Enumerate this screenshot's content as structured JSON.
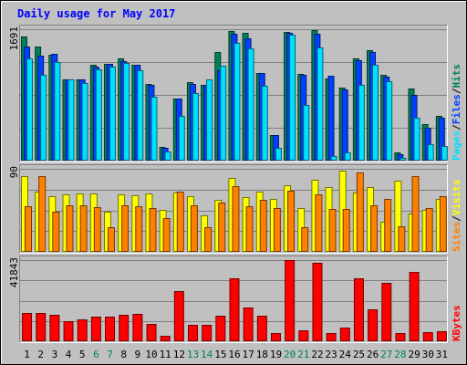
{
  "chart_data": {
    "type": "bar",
    "title": "Daily usage for May 2017",
    "categories": [
      "1",
      "2",
      "3",
      "4",
      "5",
      "6",
      "7",
      "8",
      "9",
      "10",
      "11",
      "12",
      "13",
      "14",
      "15",
      "16",
      "17",
      "18",
      "19",
      "20",
      "21",
      "22",
      "23",
      "24",
      "25",
      "26",
      "27",
      "28",
      "29",
      "30",
      "31"
    ],
    "weekend_days": [
      6,
      7,
      13,
      14,
      20,
      21,
      27,
      28
    ],
    "panels": [
      {
        "id": "hits-files-pages",
        "ymax_label": "1691",
        "ymax": 1691,
        "right_labels": [
          {
            "text": "Pages",
            "color": "#00e0ff"
          },
          {
            "text": "/",
            "color": "#000000"
          },
          {
            "text": "Files",
            "color": "#0040ff"
          },
          {
            "text": "/",
            "color": "#000000"
          },
          {
            "text": "Hits",
            "color": "#00805c"
          }
        ],
        "series": [
          {
            "name": "Hits",
            "color": "#00805c",
            "values": [
              1600,
              1470,
              1360,
              1040,
              1050,
              1230,
              1250,
              1320,
              1230,
              990,
              180,
              800,
              1010,
              980,
              1400,
              1670,
              1640,
              1130,
              330,
              1650,
              1110,
              1680,
              1060,
              940,
              1310,
              1420,
              1100,
              100,
              930,
              470,
              570
            ]
          },
          {
            "name": "Files",
            "color": "#0040ff",
            "values": [
              1470,
              1350,
              1370,
              1040,
              1040,
              1210,
              1240,
              1280,
              1230,
              980,
              170,
              800,
              990,
              970,
              1160,
              1630,
              1570,
              1130,
              330,
              1640,
              1100,
              1630,
              1090,
              920,
              1290,
              1400,
              1080,
              80,
              840,
              420,
              550
            ]
          },
          {
            "name": "Pages",
            "color": "#00e0ff",
            "values": [
              1320,
              1100,
              1270,
              1040,
              1000,
              1170,
              1210,
              1260,
              1160,
              820,
              120,
              580,
              870,
              1040,
              1220,
              1520,
              1450,
              960,
              170,
              1620,
              720,
              1460,
              60,
              110,
              970,
              1230,
              1020,
              40,
              550,
              210,
              190
            ]
          }
        ]
      },
      {
        "id": "visits-sites",
        "ymax_label": "90",
        "ymax": 90,
        "right_labels": [
          {
            "text": "Sites",
            "color": "#ff8000"
          },
          {
            "text": "/",
            "color": "#000000"
          },
          {
            "text": "Visits",
            "color": "#ffff00"
          }
        ],
        "series": [
          {
            "name": "Visits",
            "color": "#ffff00",
            "values": [
              82,
              65,
              60,
              62,
              63,
              63,
              44,
              62,
              61,
              63,
              45,
              64,
              60,
              40,
              56,
              80,
              59,
              65,
              57,
              72,
              47,
              78,
              70,
              88,
              64,
              70,
              33,
              77,
              42,
              45,
              57
            ]
          },
          {
            "name": "Sites",
            "color": "#ff8000",
            "values": [
              49,
              82,
              44,
              50,
              50,
              48,
              27,
              50,
              49,
              47,
              37,
              65,
              50,
              27,
              53,
              71,
              49,
              56,
              47,
              66,
              27,
              62,
              46,
              46,
              86,
              50,
              57,
              28,
              82,
              47,
              60
            ]
          }
        ]
      },
      {
        "id": "kbytes",
        "ymax_label": "41843",
        "ymax": 41843,
        "right_labels": [
          {
            "text": "KBytes",
            "color": "#ff0000"
          }
        ],
        "series": [
          {
            "name": "KBytes",
            "color": "#ff0000",
            "values": [
              14800,
              14400,
              13400,
              10400,
              11200,
              12600,
              12500,
              13600,
              14300,
              8700,
              2900,
              25800,
              8300,
              8600,
              13000,
              32400,
              17400,
              13300,
              4400,
              41800,
              5700,
              40400,
              4400,
              7200,
              32500,
              16600,
              30300,
              4100,
              35800,
              4800,
              5300
            ]
          }
        ]
      }
    ]
  }
}
